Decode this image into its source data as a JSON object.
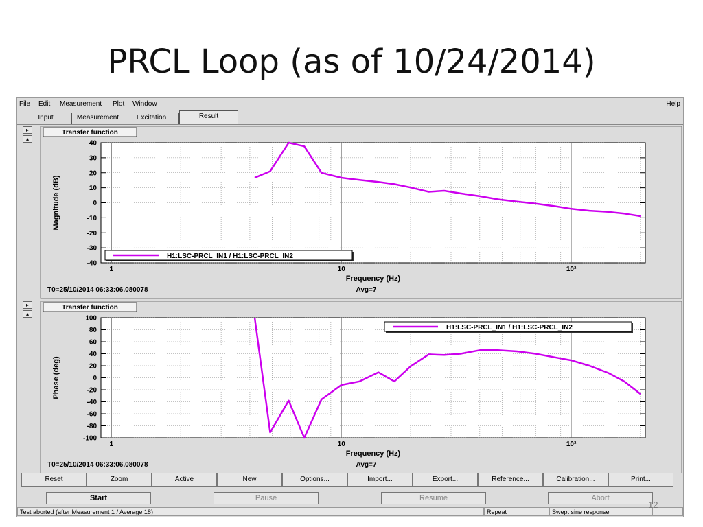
{
  "slide": {
    "title": "PRCL Loop (as of 10/24/2014)",
    "page_number": "12"
  },
  "menu": {
    "left": [
      "File",
      "Edit",
      "Measurement",
      "Plot",
      "Window"
    ],
    "right": "Help"
  },
  "tabs": [
    "Input",
    "Measurement",
    "Excitation",
    "Result"
  ],
  "active_tab": "Result",
  "toolbar": [
    "Reset",
    "Zoom",
    "Active",
    "New",
    "Options...",
    "Import...",
    "Export...",
    "Reference...",
    "Calibration...",
    "Print..."
  ],
  "controls": [
    {
      "label": "Start",
      "enabled": true
    },
    {
      "label": "Pause",
      "enabled": false
    },
    {
      "label": "Resume",
      "enabled": false
    },
    {
      "label": "Abort",
      "enabled": false
    }
  ],
  "status": {
    "message": "Test aborted (after Measurement 1 / Average 18)",
    "repeat": "Repeat",
    "mode": "Swept sine response"
  },
  "colors": {
    "trace": "#cc00ee",
    "panel": "#dcdcdc",
    "plot_bg": "#ffffff",
    "grid": "#888888"
  },
  "chart_data": [
    {
      "type": "line",
      "title": "Transfer function",
      "xlabel": "Frequency (Hz)",
      "ylabel": "Magnitude (dB)",
      "xscale": "log",
      "xlim": [
        0.9,
        210
      ],
      "ylim": [
        -40,
        40
      ],
      "yticks": [
        40,
        30,
        20,
        10,
        0,
        -10,
        -20,
        -30,
        -40
      ],
      "xticklabels": [
        "1",
        "10",
        "10²"
      ],
      "legend_position": "bottom-left",
      "footer_left": "T0=25/10/2014 06:33:06.080078",
      "footer_right": "Avg=7",
      "grid": true,
      "series": [
        {
          "name": "H1:LSC-PRCL_IN1 / H1:LSC-PRCL_IN2",
          "x": [
            4.2,
            4.9,
            5.9,
            6.9,
            8.2,
            10,
            12,
            14.5,
            17,
            20,
            24,
            28,
            33,
            40,
            48,
            58,
            70,
            85,
            100,
            120,
            145,
            170,
            200
          ],
          "y": [
            16.7,
            21,
            40,
            37.6,
            20,
            16.7,
            15.2,
            13.8,
            12.4,
            10.2,
            7.3,
            8,
            6.2,
            4.4,
            2.3,
            0.8,
            -0.6,
            -2.3,
            -4,
            -5.3,
            -6.1,
            -7.2,
            -8.9
          ]
        }
      ]
    },
    {
      "type": "line",
      "title": "Transfer function",
      "xlabel": "Frequency (Hz)",
      "ylabel": "Phase (deg)",
      "xscale": "log",
      "xlim": [
        0.9,
        210
      ],
      "ylim": [
        -100,
        100
      ],
      "yticks": [
        100,
        80,
        60,
        40,
        20,
        0,
        -20,
        -40,
        -60,
        -80,
        -100
      ],
      "xticklabels": [
        "1",
        "10",
        "10²"
      ],
      "legend_position": "top-right",
      "footer_left": "T0=25/10/2014 06:33:06.080078",
      "footer_right": "Avg=7",
      "grid": true,
      "series": [
        {
          "name": "H1:LSC-PRCL_IN1 / H1:LSC-PRCL_IN2",
          "x": [
            4.2,
            4.9,
            5.9,
            6.9,
            8.2,
            10,
            12,
            14.5,
            17,
            20,
            24,
            28,
            33,
            40,
            48,
            58,
            70,
            85,
            100,
            120,
            145,
            170,
            200
          ],
          "y": [
            100,
            -91,
            -38,
            -100,
            -36,
            -12,
            -6,
            9,
            -6,
            19,
            39,
            38,
            40,
            46,
            46,
            44,
            40,
            34,
            29,
            20,
            8,
            -6,
            -27
          ]
        }
      ]
    }
  ]
}
